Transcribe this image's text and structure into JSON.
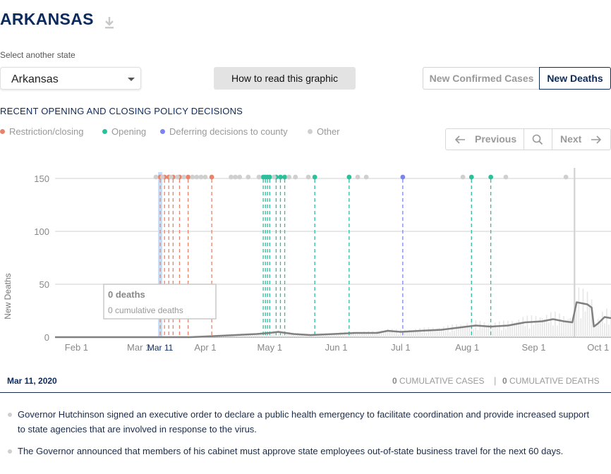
{
  "header": {
    "state_name": "ARKANSAS"
  },
  "selector": {
    "label": "Select another state",
    "value": "Arkansas"
  },
  "how_to_read": "How to read this graphic",
  "toggle": {
    "cases_label": "New Confirmed Cases",
    "deaths_label": "New Deaths",
    "active": "deaths"
  },
  "section_heading": "RECENT OPENING AND CLOSING POLICY DECISIONS",
  "legend": [
    {
      "label": "Restriction/closing",
      "color": "#e8836b"
    },
    {
      "label": "Opening",
      "color": "#2bbf9b"
    },
    {
      "label": "Deferring decisions to county",
      "color": "#7b84e9"
    },
    {
      "label": "Other",
      "color": "#cfcfcf"
    }
  ],
  "pager": {
    "previous": "Previous",
    "next": "Next"
  },
  "tooltip": {
    "value": "0 deaths",
    "cumulative": "0 cumulative deaths"
  },
  "date_bar": {
    "date": "Mar 11, 2020",
    "cum_cases_value": "0",
    "cum_cases_label": "CUMULATIVE CASES",
    "separator": "|",
    "cum_deaths_value": "0",
    "cum_deaths_label": "CUMULATIVE DEATHS"
  },
  "policies": [
    "Governor Hutchinson signed an executive order to declare a public health emergency to facilitate coordination and provide increased support to state agencies that are involved in response to the virus.",
    "The Governor announced that members of his cabinet must approve state employees out-of-state business travel for the next 60 days."
  ],
  "chart_data": {
    "type": "line",
    "ylabel": "New Deaths",
    "ylim": [
      0,
      160
    ],
    "y_ticks": [
      0,
      50,
      100,
      150
    ],
    "x_ticks": [
      "Feb 1",
      "Mar 1",
      "Apr 1",
      "May 1",
      "Jun 1",
      "Jul 1",
      "Aug 1",
      "Sep 1",
      "Oct 1"
    ],
    "x_range": [
      "2020-01-22",
      "2020-10-07"
    ],
    "selected_date": "2020-03-11",
    "selected_label": "Mar 11",
    "selected_color": "#c5def8",
    "line_color": "#808080",
    "bar_color": "#e6e6e6",
    "series": [
      {
        "values": [
          [
            "2020-01-22",
            0
          ],
          [
            "2020-03-11",
            0
          ],
          [
            "2020-03-25",
            0
          ],
          [
            "2020-04-05",
            1
          ],
          [
            "2020-04-15",
            2
          ],
          [
            "2020-04-25",
            3
          ],
          [
            "2020-05-01",
            4
          ],
          [
            "2020-05-05",
            5
          ],
          [
            "2020-05-12",
            3
          ],
          [
            "2020-05-20",
            2
          ],
          [
            "2020-05-31",
            3
          ],
          [
            "2020-06-10",
            4
          ],
          [
            "2020-06-20",
            4
          ],
          [
            "2020-06-25",
            6
          ],
          [
            "2020-07-01",
            5
          ],
          [
            "2020-07-10",
            6
          ],
          [
            "2020-07-20",
            7
          ],
          [
            "2020-07-28",
            9
          ],
          [
            "2020-08-05",
            11
          ],
          [
            "2020-08-12",
            10
          ],
          [
            "2020-08-20",
            11
          ],
          [
            "2020-08-28",
            14
          ],
          [
            "2020-09-05",
            15
          ],
          [
            "2020-09-10",
            17
          ],
          [
            "2020-09-15",
            15
          ],
          [
            "2020-09-19",
            14
          ],
          [
            "2020-09-21",
            33
          ],
          [
            "2020-09-26",
            31
          ],
          [
            "2020-09-28",
            28
          ],
          [
            "2020-09-29",
            10
          ],
          [
            "2020-10-01",
            13
          ],
          [
            "2020-10-04",
            19
          ],
          [
            "2020-10-07",
            18
          ]
        ]
      }
    ],
    "spike": [
      "2020-09-20",
      160
    ],
    "policy_events": [
      {
        "date": "2020-03-11",
        "type": "restriction",
        "line": true
      },
      {
        "date": "2020-03-13",
        "type": "restriction",
        "line": true
      },
      {
        "date": "2020-03-15",
        "type": "restriction",
        "line": true
      },
      {
        "date": "2020-03-17",
        "type": "restriction",
        "line": true
      },
      {
        "date": "2020-03-20",
        "type": "restriction",
        "line": true
      },
      {
        "date": "2020-03-24",
        "type": "restriction",
        "line": true
      },
      {
        "date": "2020-04-04",
        "type": "restriction",
        "line": true
      },
      {
        "date": "2020-04-28",
        "type": "opening",
        "line": true
      },
      {
        "date": "2020-04-29",
        "type": "opening",
        "line": true
      },
      {
        "date": "2020-04-30",
        "type": "opening",
        "line": true
      },
      {
        "date": "2020-05-01",
        "type": "opening",
        "line": true
      },
      {
        "date": "2020-05-04",
        "type": "opening",
        "line": true
      },
      {
        "date": "2020-05-06",
        "type": "opening",
        "line": true
      },
      {
        "date": "2020-05-08",
        "type": "opening",
        "line": true
      },
      {
        "date": "2020-05-22",
        "type": "opening",
        "line": true
      },
      {
        "date": "2020-06-07",
        "type": "opening",
        "line": true
      },
      {
        "date": "2020-07-02",
        "type": "county",
        "line": true
      },
      {
        "date": "2020-08-03",
        "type": "opening",
        "line": true
      },
      {
        "date": "2020-08-12",
        "type": "opening",
        "line": true
      },
      {
        "date": "2020-03-09",
        "type": "other",
        "line": false
      },
      {
        "date": "2020-03-12",
        "type": "other",
        "line": false
      },
      {
        "date": "2020-03-16",
        "type": "other",
        "line": false
      },
      {
        "date": "2020-03-19",
        "type": "other",
        "line": false
      },
      {
        "date": "2020-03-22",
        "type": "other",
        "line": false
      },
      {
        "date": "2020-03-26",
        "type": "other",
        "line": false
      },
      {
        "date": "2020-03-28",
        "type": "other",
        "line": false
      },
      {
        "date": "2020-03-30",
        "type": "other",
        "line": false
      },
      {
        "date": "2020-04-01",
        "type": "other",
        "line": false
      },
      {
        "date": "2020-04-13",
        "type": "other",
        "line": false
      },
      {
        "date": "2020-04-15",
        "type": "other",
        "line": false
      },
      {
        "date": "2020-04-17",
        "type": "other",
        "line": false
      },
      {
        "date": "2020-04-21",
        "type": "other",
        "line": false
      },
      {
        "date": "2020-04-26",
        "type": "other",
        "line": false
      },
      {
        "date": "2020-05-03",
        "type": "other",
        "line": false
      },
      {
        "date": "2020-05-10",
        "type": "other",
        "line": false
      },
      {
        "date": "2020-05-13",
        "type": "other",
        "line": false
      },
      {
        "date": "2020-05-19",
        "type": "other",
        "line": false
      },
      {
        "date": "2020-06-11",
        "type": "other",
        "line": false
      },
      {
        "date": "2020-06-15",
        "type": "other",
        "line": false
      },
      {
        "date": "2020-07-30",
        "type": "other",
        "line": false
      },
      {
        "date": "2020-08-19",
        "type": "other",
        "line": false
      },
      {
        "date": "2020-09-16",
        "type": "other",
        "line": false
      }
    ],
    "event_colors": {
      "restriction": "#e8836b",
      "opening": "#2bbf9b",
      "county": "#7b84e9",
      "other": "#cfcfcf"
    }
  }
}
